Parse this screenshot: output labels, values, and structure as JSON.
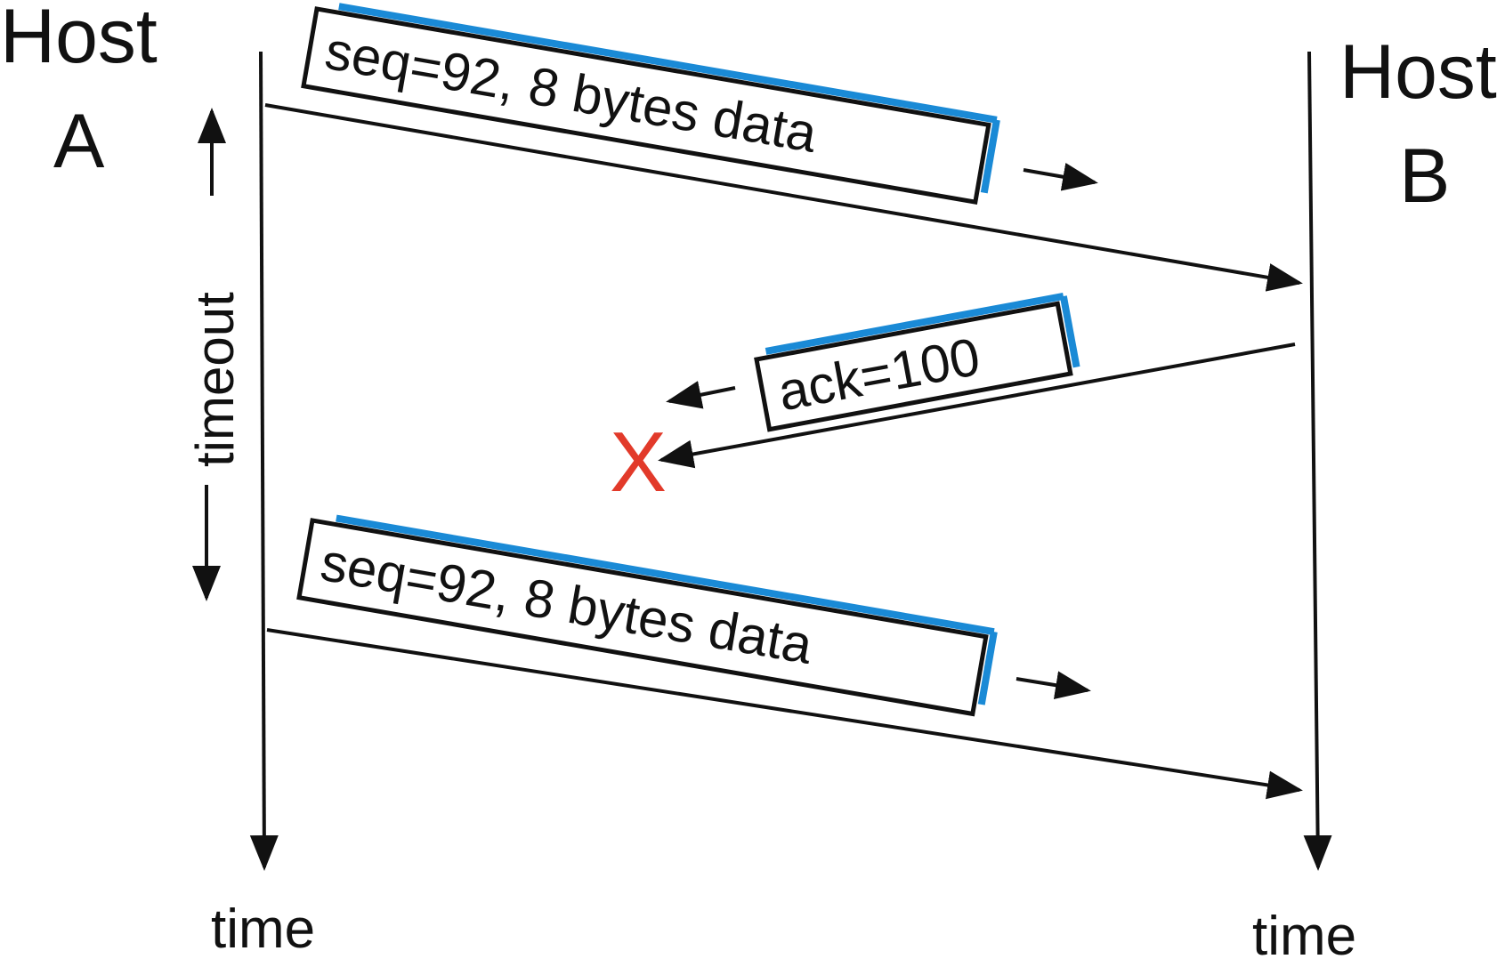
{
  "host_a": {
    "line1": "Host",
    "line2": "A"
  },
  "host_b": {
    "line1": "Host",
    "line2": "B"
  },
  "timeout_label": "timeout",
  "time_label_a": "time",
  "time_label_b": "time",
  "messages": [
    {
      "text": "seq=92, 8 bytes data",
      "direction": "A to B",
      "lost": false
    },
    {
      "text": "ack=100",
      "direction": "B to A",
      "lost": true
    },
    {
      "text": "seq=92, 8 bytes data",
      "direction": "A to B",
      "lost": false
    }
  ],
  "loss_mark": "X",
  "colors": {
    "line": "#111111",
    "box_highlight": "#1a8ad6",
    "loss": "#e23a2a"
  }
}
